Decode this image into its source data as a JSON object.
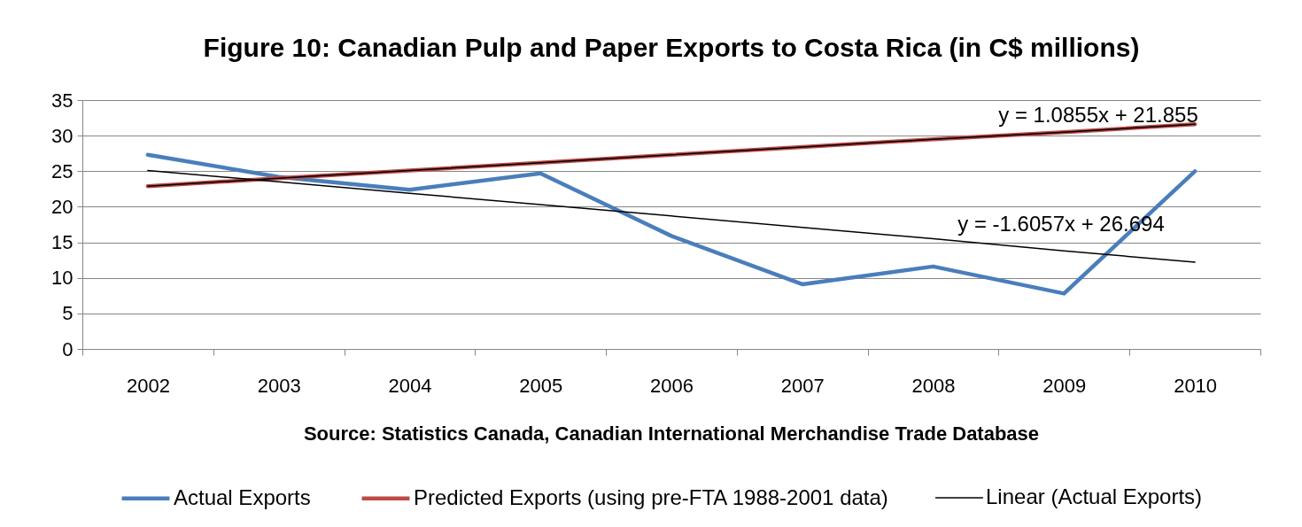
{
  "chart_data": {
    "type": "line",
    "title": "Figure 10: Canadian Pulp and Paper Exports to Costa Rica (in C$ millions)",
    "categories": [
      "2002",
      "2003",
      "2004",
      "2005",
      "2006",
      "2007",
      "2008",
      "2009",
      "2010"
    ],
    "series": [
      {
        "name": "Actual Exports",
        "color": "#4a7ebb",
        "values": [
          27.3,
          24.2,
          22.4,
          24.7,
          15.9,
          9.1,
          11.6,
          7.8,
          25.0
        ]
      },
      {
        "name": "Predicted Exports (using pre-FTA 1988-2001 data)",
        "color": "#be4b48",
        "values": [
          22.9,
          24.0,
          25.1,
          26.2,
          27.3,
          28.4,
          29.5,
          30.5,
          31.6
        ]
      },
      {
        "color": "#000000",
        "values": [
          22.9,
          24.0,
          25.1,
          26.2,
          27.3,
          28.4,
          29.5,
          30.5,
          31.6
        ]
      },
      {
        "name": "Linear (Actual Exports)",
        "color": "#000000",
        "values": [
          25.1,
          23.5,
          21.9,
          20.3,
          18.7,
          17.1,
          15.5,
          13.8,
          12.2
        ]
      }
    ],
    "ylim": [
      0,
      35
    ],
    "yticks": [
      0,
      5,
      10,
      15,
      20,
      25,
      30,
      35
    ],
    "grid": "y",
    "legend": "bottom",
    "line_style": "solid",
    "annotations": [
      "y = 1.0855x + 21.855",
      "y = -1.6057x + 26.694",
      "Source: Statistics Canada, Canadian International Merchandise Trade Database"
    ]
  }
}
